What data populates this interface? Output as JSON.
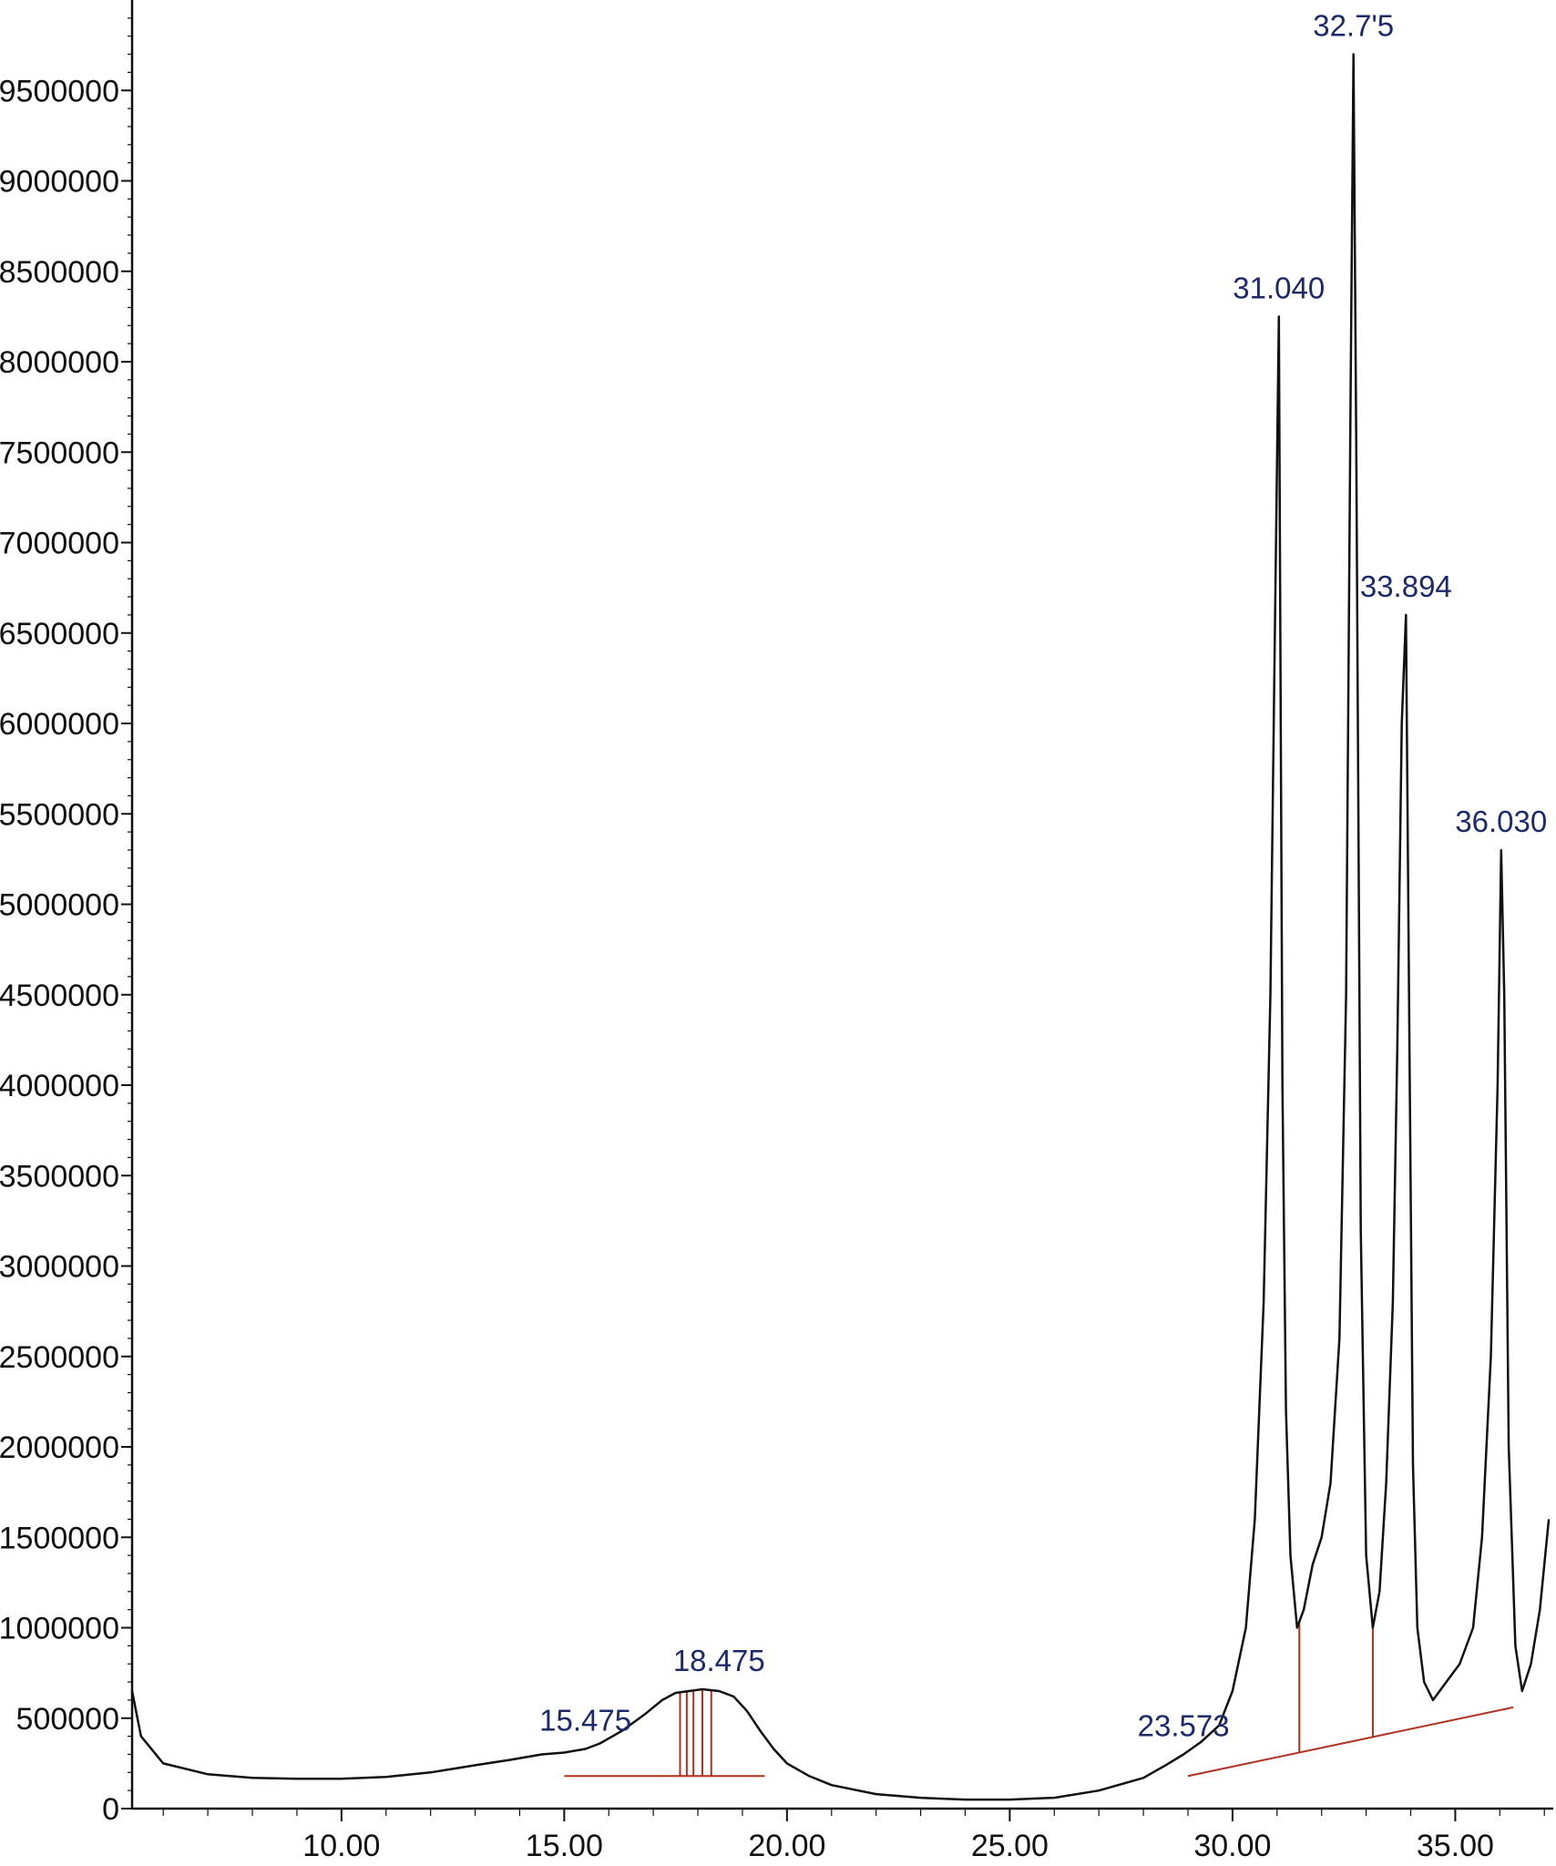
{
  "colors": {
    "trace": "#111111",
    "axis": "#111111",
    "baseline": "#b03020",
    "peak_label": "#1c2a6b",
    "background": "#ffffff"
  },
  "chart_data": {
    "type": "line",
    "title": "",
    "xlabel": "",
    "ylabel": "",
    "xlim": [
      5.3,
      37.2
    ],
    "ylim": [
      0,
      10000000
    ],
    "grid": false,
    "legend": "none",
    "x_ticks": [
      10.0,
      15.0,
      20.0,
      25.0,
      30.0,
      35.0
    ],
    "x_tick_labels": [
      "10.00",
      "15.00",
      "20.00",
      "25.00",
      "30.00",
      "35.00"
    ],
    "y_ticks": [
      0,
      500000,
      1000000,
      1500000,
      2000000,
      2500000,
      3000000,
      3500000,
      4000000,
      4500000,
      5000000,
      5500000,
      6000000,
      6500000,
      7000000,
      7500000,
      8000000,
      8500000,
      9000000,
      9500000
    ],
    "y_tick_labels": [
      "0",
      "500000",
      "1000000",
      "1500000",
      "2000000",
      "2500000",
      "3000000",
      "3500000",
      "4000000",
      "4500000",
      "5000000",
      "5500000",
      "6000000",
      "6500000",
      "7000000",
      "7500000",
      "8000000",
      "8500000",
      "9000000",
      "9500000"
    ],
    "series": [
      {
        "x": [
          5.3,
          5.5,
          6.0,
          7.0,
          8.0,
          9.0,
          10.0,
          11.0,
          12.0,
          13.0,
          13.8,
          14.5,
          15.0,
          15.475,
          15.8,
          16.3,
          16.8,
          17.2,
          17.5,
          17.8,
          18.1,
          18.475,
          18.8,
          19.1,
          19.4,
          19.7,
          20.0,
          20.5,
          21.0,
          22.0,
          23.0,
          24.0,
          25.0,
          26.0,
          27.0,
          28.0,
          28.5,
          28.9,
          29.3,
          29.7,
          30.0,
          30.3,
          30.5,
          30.7,
          30.85,
          30.95,
          31.04,
          31.12,
          31.2,
          31.3,
          31.45,
          31.6,
          31.8,
          32.0,
          32.2,
          32.4,
          32.55,
          32.65,
          32.715,
          32.78,
          32.88,
          33.0,
          33.15,
          33.3,
          33.45,
          33.6,
          33.7,
          33.8,
          33.894,
          33.97,
          34.05,
          34.15,
          34.3,
          34.5,
          34.8,
          35.1,
          35.4,
          35.6,
          35.8,
          35.95,
          36.03,
          36.1,
          36.2,
          36.35,
          36.5,
          36.7,
          36.9,
          37.1
        ],
        "y": [
          650000,
          400000,
          250000,
          190000,
          170000,
          165000,
          165000,
          175000,
          200000,
          240000,
          270000,
          300000,
          310000,
          330000,
          360000,
          430000,
          520000,
          600000,
          640000,
          650000,
          660000,
          650000,
          620000,
          540000,
          430000,
          330000,
          250000,
          180000,
          130000,
          80000,
          60000,
          50000,
          50000,
          60000,
          100000,
          170000,
          240000,
          300000,
          370000,
          460000,
          650000,
          1000000,
          1600000,
          2800000,
          4500000,
          6500000,
          8250000,
          4000000,
          2200000,
          1400000,
          1000000,
          1100000,
          1350000,
          1500000,
          1800000,
          2600000,
          4500000,
          7800000,
          9700000,
          7500000,
          3200000,
          1400000,
          1000000,
          1200000,
          1800000,
          2800000,
          4200000,
          6000000,
          6600000,
          4300000,
          1900000,
          1000000,
          700000,
          600000,
          700000,
          800000,
          1000000,
          1500000,
          2500000,
          4000000,
          5300000,
          4500000,
          2000000,
          900000,
          650000,
          800000,
          1100000,
          1600000
        ]
      }
    ],
    "peak_labels": [
      {
        "label": "15.475",
        "x": 15.475,
        "y": 330000
      },
      {
        "label": "18.475",
        "x": 18.475,
        "y": 660000
      },
      {
        "label": "23.573",
        "x": 28.9,
        "y": 300000
      },
      {
        "label": "31.040",
        "x": 31.04,
        "y": 8250000
      },
      {
        "label": "32.7'5",
        "x": 32.715,
        "y": 9700000
      },
      {
        "label": "33.894",
        "x": 33.894,
        "y": 6600000
      },
      {
        "label": "36.030",
        "x": 36.03,
        "y": 5300000
      }
    ],
    "baselines": [
      {
        "x1": 15.0,
        "y1": 180000,
        "x2": 19.5,
        "y2": 180000
      },
      {
        "x1": 29.0,
        "y1": 180000,
        "x2": 36.3,
        "y2": 560000
      }
    ],
    "integration_drops": [
      {
        "x": 17.6
      },
      {
        "x": 17.75
      },
      {
        "x": 17.9
      },
      {
        "x": 18.1
      },
      {
        "x": 18.3
      },
      {
        "x": 31.5
      },
      {
        "x": 33.15
      }
    ]
  }
}
